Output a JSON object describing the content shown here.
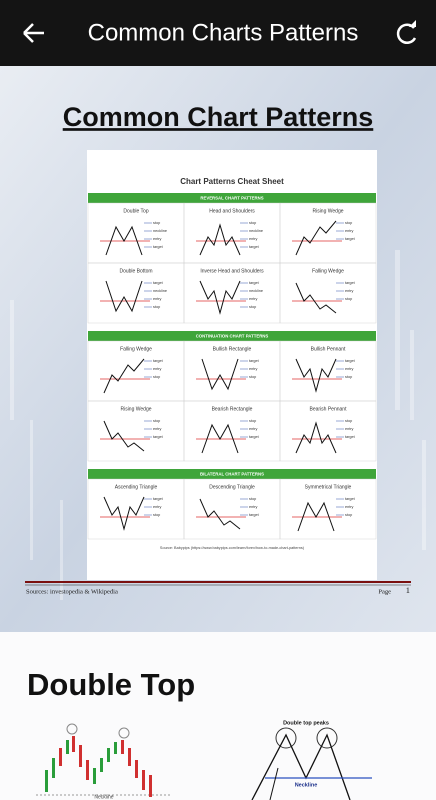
{
  "app_bar": {
    "title": "Common Charts Patterns"
  },
  "page1": {
    "heading": "Common Chart Patterns",
    "sheet": {
      "title": "Chart Patterns Cheat Sheet",
      "sections": [
        {
          "name": "REVERSAL CHART PATTERNS",
          "patterns": [
            {
              "name": "Double Top",
              "labels": [
                "stop",
                "neckline",
                "entry",
                "target"
              ]
            },
            {
              "name": "Head and Shoulders",
              "labels": [
                "stop",
                "neckline",
                "entry",
                "target"
              ]
            },
            {
              "name": "Rising Wedge",
              "labels": [
                "stop",
                "entry",
                "target"
              ]
            },
            {
              "name": "Double Bottom",
              "labels": [
                "target",
                "neckline",
                "entry",
                "stop"
              ]
            },
            {
              "name": "Inverse Head and Shoulders",
              "labels": [
                "target",
                "neckline",
                "entry",
                "stop"
              ]
            },
            {
              "name": "Falling Wedge",
              "labels": [
                "target",
                "entry",
                "stop"
              ]
            }
          ]
        },
        {
          "name": "CONTINUATION CHART PATTERNS",
          "patterns": [
            {
              "name": "Falling Wedge",
              "labels": [
                "target",
                "entry",
                "stop"
              ]
            },
            {
              "name": "Bullish Rectangle",
              "labels": [
                "target",
                "entry",
                "stop"
              ]
            },
            {
              "name": "Bullish Pennant",
              "labels": [
                "target",
                "entry",
                "stop"
              ]
            },
            {
              "name": "Rising Wedge",
              "labels": [
                "stop",
                "entry",
                "target"
              ]
            },
            {
              "name": "Bearish Rectangle",
              "labels": [
                "stop",
                "entry",
                "target"
              ]
            },
            {
              "name": "Bearish Pennant",
              "labels": [
                "stop",
                "entry",
                "target"
              ]
            }
          ]
        },
        {
          "name": "BILATERAL CHART PATTERNS",
          "patterns": [
            {
              "name": "Ascending Triangle",
              "labels": [
                "target",
                "entry",
                "stop"
              ]
            },
            {
              "name": "Descending Triangle",
              "labels": [
                "stop",
                "entry",
                "target"
              ]
            },
            {
              "name": "Symmetrical Triangle",
              "labels": [
                "target",
                "entry",
                "stop"
              ]
            }
          ]
        }
      ],
      "source": "Source: Babypips (https://www.babypips.com/learn/forex/how-to-made-chart-patterns)"
    },
    "footer_left": "Sources: investopedia & Wikipedia",
    "footer_page_label": "Page",
    "footer_page_number": "1"
  },
  "page2": {
    "heading": "Double Top",
    "diagram_title": "Double top peaks",
    "neckline": "Neckline"
  }
}
